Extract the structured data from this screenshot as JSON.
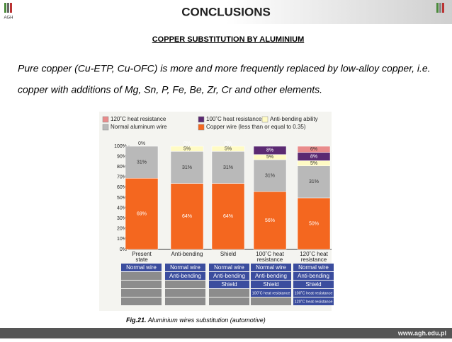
{
  "header": {
    "title": "CONCLUSIONS",
    "logo": "AGH"
  },
  "subtitle": "COPPER SUBSTITUTION BY ALUMINIUM",
  "paragraph": [
    "Pure copper (Cu-ETP, Cu-OFC) is more and more frequently replaced by low-alloy copper, i.e.",
    "copper with additions of Mg, Sn, P, Fe, Be, Zr, Cr and other elements."
  ],
  "figure": {
    "chart": {
      "type": "stacked-bar",
      "categories": [
        "Present state",
        "Anti-bending",
        "Shield",
        "100˚C heat resistance",
        "120˚C heat resistance"
      ],
      "ylim": [
        0,
        100
      ],
      "yticks": [
        {
          "value": 0,
          "label": "0%"
        },
        {
          "value": 10,
          "label": "10%"
        },
        {
          "value": 20,
          "label": "20%"
        },
        {
          "value": 30,
          "label": "30%"
        },
        {
          "value": 40,
          "label": "40%"
        },
        {
          "value": 50,
          "label": "50%"
        },
        {
          "value": 60,
          "label": "60%"
        },
        {
          "value": 70,
          "label": "70%"
        },
        {
          "value": 80,
          "label": "80%"
        },
        {
          "value": 90,
          "label": "90%"
        },
        {
          "value": 100,
          "label": "100%"
        }
      ],
      "series": [
        {
          "name": "Copper wire (less than or equal to 0.35)",
          "color": "#f4671f",
          "values": [
            69,
            64,
            64,
            56,
            50
          ],
          "value_labels": [
            "69%",
            "64%",
            "64%",
            "56%",
            "50%"
          ]
        },
        {
          "name": "Normal aluminum wire",
          "color": "#b9b9b9",
          "values": [
            31,
            31,
            31,
            31,
            31
          ],
          "value_labels": [
            "31%",
            "31%",
            "31%",
            "31%",
            "31%"
          ]
        },
        {
          "name": "Anti-bending ability",
          "color": "#fffbc4",
          "values": [
            0,
            5,
            5,
            5,
            5
          ],
          "value_labels": [
            "0%",
            "5%",
            "5%",
            "5%",
            "5%"
          ]
        },
        {
          "name": "100˚C heat resistance",
          "color": "#5b2a72",
          "values": [
            null,
            0,
            0,
            8,
            8
          ],
          "value_labels": [
            null,
            "0%",
            "0%",
            "8%",
            "8%"
          ]
        },
        {
          "name": "120˚C heat resistance",
          "color": "#e98b8b",
          "values": [
            null,
            null,
            null,
            null,
            6
          ],
          "value_labels": [
            null,
            null,
            null,
            null,
            "6%"
          ]
        }
      ]
    },
    "table": [
      [
        "Normal wire"
      ],
      [
        "Normal wire",
        "Anti-bending"
      ],
      [
        "Normal wire",
        "Anti-bending",
        "Shield"
      ],
      [
        "Normal wire",
        "Anti-bending",
        "Shield",
        "100˚C heat resistance"
      ],
      [
        "Normal wire",
        "Anti-bending",
        "Shield",
        "100˚C heat resistance",
        "120˚C heat resistance"
      ]
    ],
    "caption": {
      "label": "Fig.21.",
      "text": "Aluminium wires substitution (automotive)"
    }
  },
  "footer": "www.agh.edu.pl"
}
